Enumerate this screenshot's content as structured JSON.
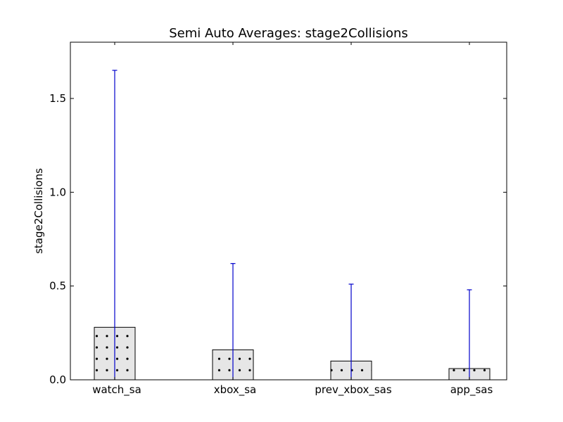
{
  "chart_data": {
    "type": "bar",
    "title": "Semi Auto Averages: stage2Collisions",
    "xlabel": "",
    "ylabel": "stage2Collisions",
    "categories": [
      "watch_sa",
      "xbox_sa",
      "prev_xbox_sas",
      "app_sas"
    ],
    "values": [
      0.28,
      0.16,
      0.1,
      0.06
    ],
    "error_upper": [
      1.65,
      0.62,
      0.51,
      0.48
    ],
    "ylim": [
      0,
      1.8
    ],
    "yticks": [
      0.0,
      0.5,
      1.0,
      1.5
    ],
    "ytick_labels": [
      "0.0",
      "0.5",
      "1.0",
      "1.5"
    ],
    "grid": false,
    "colors": {
      "bar_fill": "#e6e6e6",
      "bar_edge": "#000000",
      "hatch_dot": "#000000",
      "error_bar": "#0000cc",
      "axes": "#000000"
    }
  }
}
